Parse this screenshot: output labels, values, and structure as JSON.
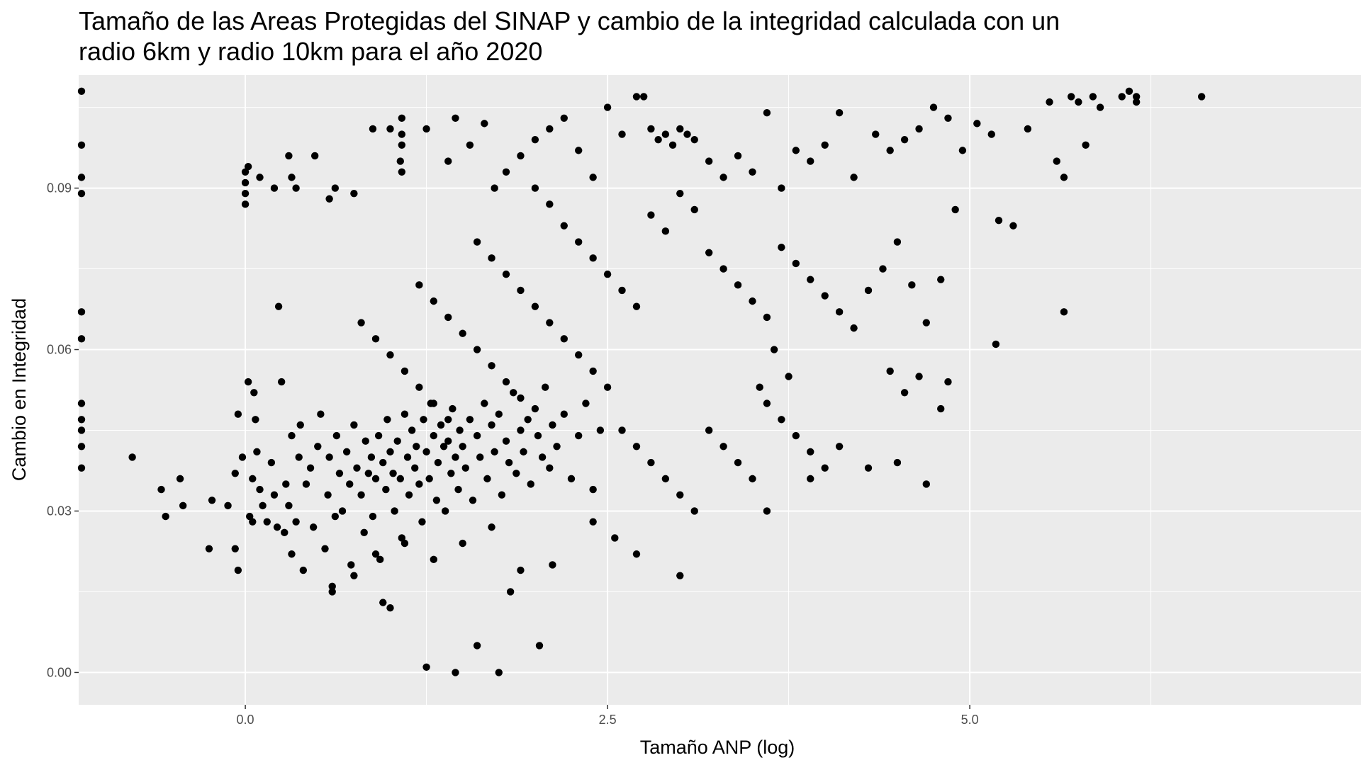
{
  "chart_data": {
    "type": "scatter",
    "title_lines": [
      "Tamaño de las Areas Protegidas del SINAP y cambio de la integridad calculada con un",
      "radio 6km y radio 10km para el año 2020"
    ],
    "xlabel": "Tamaño ANP (log)",
    "ylabel": "Cambio en Integridad",
    "xlim": [
      -1.15,
      7.7
    ],
    "ylim": [
      -0.006,
      0.111
    ],
    "x_ticks": [
      0.0,
      2.5,
      5.0
    ],
    "x_tick_labels": [
      "0.0",
      "2.5",
      "5.0"
    ],
    "y_ticks": [
      0.0,
      0.03,
      0.06,
      0.09
    ],
    "y_tick_labels": [
      "0.00",
      "0.03",
      "0.06",
      "0.09"
    ],
    "grid": true,
    "panel_color": "#ebebeb",
    "grid_color": "#ffffff",
    "point_color": "#000000",
    "points": [
      [
        -1.15,
        0.108
      ],
      [
        -1.15,
        0.098
      ],
      [
        -1.15,
        0.092
      ],
      [
        -1.15,
        0.089
      ],
      [
        -1.15,
        0.067
      ],
      [
        -1.15,
        0.062
      ],
      [
        -1.15,
        0.05
      ],
      [
        -1.15,
        0.047
      ],
      [
        -1.15,
        0.045
      ],
      [
        -1.15,
        0.042
      ],
      [
        -1.15,
        0.038
      ],
      [
        -0.78,
        0.04
      ],
      [
        -0.58,
        0.034
      ],
      [
        -0.55,
        0.029
      ],
      [
        -0.45,
        0.036
      ],
      [
        -0.43,
        0.031
      ],
      [
        -0.25,
        0.023
      ],
      [
        -0.23,
        0.032
      ],
      [
        -0.12,
        0.031
      ],
      [
        -0.07,
        0.037
      ],
      [
        -0.02,
        0.04
      ],
      [
        -0.05,
        0.019
      ],
      [
        -0.07,
        0.023
      ],
      [
        -0.05,
        0.048
      ],
      [
        0.02,
        0.054
      ],
      [
        0.0,
        0.093
      ],
      [
        0.0,
        0.091
      ],
      [
        0.0,
        0.089
      ],
      [
        0.0,
        0.087
      ],
      [
        0.02,
        0.094
      ],
      [
        0.03,
        0.029
      ],
      [
        0.05,
        0.028
      ],
      [
        0.05,
        0.036
      ],
      [
        0.06,
        0.052
      ],
      [
        0.07,
        0.047
      ],
      [
        0.08,
        0.041
      ],
      [
        0.1,
        0.034
      ],
      [
        0.12,
        0.031
      ],
      [
        0.15,
        0.028
      ],
      [
        0.18,
        0.039
      ],
      [
        0.2,
        0.033
      ],
      [
        0.22,
        0.027
      ],
      [
        0.23,
        0.068
      ],
      [
        0.25,
        0.054
      ],
      [
        0.27,
        0.026
      ],
      [
        0.28,
        0.035
      ],
      [
        0.3,
        0.031
      ],
      [
        0.32,
        0.022
      ],
      [
        0.32,
        0.044
      ],
      [
        0.35,
        0.028
      ],
      [
        0.37,
        0.04
      ],
      [
        0.38,
        0.046
      ],
      [
        0.4,
        0.019
      ],
      [
        0.42,
        0.035
      ],
      [
        0.45,
        0.038
      ],
      [
        0.47,
        0.027
      ],
      [
        0.5,
        0.042
      ],
      [
        0.52,
        0.048
      ],
      [
        0.55,
        0.023
      ],
      [
        0.57,
        0.033
      ],
      [
        0.58,
        0.04
      ],
      [
        0.6,
        0.015
      ],
      [
        0.62,
        0.029
      ],
      [
        0.63,
        0.044
      ],
      [
        0.65,
        0.037
      ],
      [
        0.67,
        0.03
      ],
      [
        0.7,
        0.041
      ],
      [
        0.72,
        0.035
      ],
      [
        0.73,
        0.02
      ],
      [
        0.75,
        0.046
      ],
      [
        0.77,
        0.038
      ],
      [
        0.8,
        0.033
      ],
      [
        0.82,
        0.026
      ],
      [
        0.83,
        0.043
      ],
      [
        0.85,
        0.037
      ],
      [
        0.87,
        0.04
      ],
      [
        0.88,
        0.029
      ],
      [
        0.9,
        0.036
      ],
      [
        0.92,
        0.044
      ],
      [
        0.93,
        0.021
      ],
      [
        0.95,
        0.039
      ],
      [
        0.97,
        0.034
      ],
      [
        0.98,
        0.047
      ],
      [
        1.0,
        0.041
      ],
      [
        1.02,
        0.037
      ],
      [
        1.03,
        0.03
      ],
      [
        1.05,
        0.043
      ],
      [
        1.07,
        0.036
      ],
      [
        1.08,
        0.025
      ],
      [
        1.1,
        0.048
      ],
      [
        1.12,
        0.04
      ],
      [
        1.13,
        0.033
      ],
      [
        1.15,
        0.045
      ],
      [
        1.17,
        0.038
      ],
      [
        1.18,
        0.042
      ],
      [
        1.2,
        0.035
      ],
      [
        1.22,
        0.028
      ],
      [
        1.23,
        0.047
      ],
      [
        1.25,
        0.041
      ],
      [
        1.27,
        0.036
      ],
      [
        1.28,
        0.05
      ],
      [
        1.3,
        0.044
      ],
      [
        1.32,
        0.032
      ],
      [
        1.33,
        0.039
      ],
      [
        1.35,
        0.046
      ],
      [
        1.37,
        0.042
      ],
      [
        1.38,
        0.03
      ],
      [
        1.4,
        0.043
      ],
      [
        1.42,
        0.037
      ],
      [
        1.43,
        0.049
      ],
      [
        1.45,
        0.04
      ],
      [
        1.47,
        0.034
      ],
      [
        1.48,
        0.045
      ],
      [
        1.5,
        0.042
      ],
      [
        1.52,
        0.038
      ],
      [
        1.55,
        0.047
      ],
      [
        1.57,
        0.032
      ],
      [
        1.6,
        0.044
      ],
      [
        1.62,
        0.04
      ],
      [
        1.65,
        0.05
      ],
      [
        1.67,
        0.036
      ],
      [
        1.7,
        0.046
      ],
      [
        1.72,
        0.041
      ],
      [
        1.75,
        0.048
      ],
      [
        1.77,
        0.033
      ],
      [
        1.8,
        0.043
      ],
      [
        1.82,
        0.039
      ],
      [
        1.85,
        0.052
      ],
      [
        1.87,
        0.037
      ],
      [
        1.9,
        0.045
      ],
      [
        1.92,
        0.041
      ],
      [
        1.95,
        0.047
      ],
      [
        1.97,
        0.035
      ],
      [
        2.0,
        0.049
      ],
      [
        2.02,
        0.044
      ],
      [
        2.05,
        0.04
      ],
      [
        2.07,
        0.053
      ],
      [
        2.1,
        0.038
      ],
      [
        2.12,
        0.046
      ],
      [
        2.15,
        0.042
      ],
      [
        2.2,
        0.048
      ],
      [
        2.25,
        0.036
      ],
      [
        2.3,
        0.044
      ],
      [
        2.35,
        0.05
      ],
      [
        2.4,
        0.034
      ],
      [
        2.45,
        0.045
      ],
      [
        0.1,
        0.092
      ],
      [
        0.2,
        0.09
      ],
      [
        0.3,
        0.096
      ],
      [
        0.32,
        0.092
      ],
      [
        0.35,
        0.09
      ],
      [
        0.48,
        0.096
      ],
      [
        0.58,
        0.088
      ],
      [
        0.62,
        0.09
      ],
      [
        0.75,
        0.089
      ],
      [
        0.88,
        0.101
      ],
      [
        1.0,
        0.101
      ],
      [
        1.07,
        0.095
      ],
      [
        1.08,
        0.103
      ],
      [
        1.08,
        0.1
      ],
      [
        1.08,
        0.098
      ],
      [
        1.08,
        0.093
      ],
      [
        1.25,
        0.101
      ],
      [
        1.4,
        0.095
      ],
      [
        1.45,
        0.103
      ],
      [
        1.55,
        0.098
      ],
      [
        1.65,
        0.102
      ],
      [
        1.72,
        0.09
      ],
      [
        1.8,
        0.093
      ],
      [
        1.9,
        0.096
      ],
      [
        2.0,
        0.099
      ],
      [
        2.1,
        0.101
      ],
      [
        2.2,
        0.103
      ],
      [
        2.3,
        0.097
      ],
      [
        2.4,
        0.092
      ],
      [
        2.5,
        0.105
      ],
      [
        2.6,
        0.1
      ],
      [
        2.7,
        0.107
      ],
      [
        2.75,
        0.107
      ],
      [
        2.8,
        0.101
      ],
      [
        2.85,
        0.099
      ],
      [
        2.9,
        0.1
      ],
      [
        2.95,
        0.098
      ],
      [
        3.0,
        0.101
      ],
      [
        3.05,
        0.1
      ],
      [
        3.1,
        0.099
      ],
      [
        3.2,
        0.095
      ],
      [
        3.3,
        0.092
      ],
      [
        3.4,
        0.096
      ],
      [
        3.5,
        0.093
      ],
      [
        3.6,
        0.104
      ],
      [
        3.7,
        0.09
      ],
      [
        3.8,
        0.097
      ],
      [
        3.9,
        0.095
      ],
      [
        4.0,
        0.098
      ],
      [
        4.1,
        0.104
      ],
      [
        4.2,
        0.092
      ],
      [
        4.35,
        0.1
      ],
      [
        4.45,
        0.097
      ],
      [
        4.55,
        0.099
      ],
      [
        4.65,
        0.101
      ],
      [
        4.75,
        0.105
      ],
      [
        4.85,
        0.103
      ],
      [
        4.95,
        0.097
      ],
      [
        5.05,
        0.102
      ],
      [
        5.15,
        0.1
      ],
      [
        5.2,
        0.084
      ],
      [
        5.3,
        0.083
      ],
      [
        5.4,
        0.101
      ],
      [
        5.55,
        0.106
      ],
      [
        5.6,
        0.095
      ],
      [
        5.65,
        0.092
      ],
      [
        5.7,
        0.107
      ],
      [
        5.75,
        0.106
      ],
      [
        5.8,
        0.098
      ],
      [
        5.85,
        0.107
      ],
      [
        5.9,
        0.105
      ],
      [
        6.05,
        0.107
      ],
      [
        6.1,
        0.108
      ],
      [
        6.15,
        0.106
      ],
      [
        6.15,
        0.107
      ],
      [
        6.6,
        0.107
      ],
      [
        5.65,
        0.067
      ],
      [
        5.18,
        0.061
      ],
      [
        2.0,
        0.09
      ],
      [
        2.1,
        0.087
      ],
      [
        2.2,
        0.083
      ],
      [
        2.3,
        0.08
      ],
      [
        2.4,
        0.077
      ],
      [
        2.5,
        0.074
      ],
      [
        2.6,
        0.071
      ],
      [
        2.7,
        0.068
      ],
      [
        2.8,
        0.085
      ],
      [
        2.9,
        0.082
      ],
      [
        3.0,
        0.089
      ],
      [
        3.1,
        0.086
      ],
      [
        3.2,
        0.078
      ],
      [
        3.3,
        0.075
      ],
      [
        3.4,
        0.072
      ],
      [
        3.5,
        0.069
      ],
      [
        3.6,
        0.066
      ],
      [
        3.7,
        0.079
      ],
      [
        3.8,
        0.076
      ],
      [
        3.9,
        0.073
      ],
      [
        4.0,
        0.07
      ],
      [
        4.1,
        0.067
      ],
      [
        4.2,
        0.064
      ],
      [
        4.3,
        0.071
      ],
      [
        4.4,
        0.075
      ],
      [
        4.5,
        0.08
      ],
      [
        4.6,
        0.072
      ],
      [
        4.7,
        0.065
      ],
      [
        4.8,
        0.073
      ],
      [
        4.9,
        0.086
      ],
      [
        1.6,
        0.08
      ],
      [
        1.7,
        0.077
      ],
      [
        1.8,
        0.074
      ],
      [
        1.9,
        0.071
      ],
      [
        2.0,
        0.068
      ],
      [
        2.1,
        0.065
      ],
      [
        2.2,
        0.062
      ],
      [
        2.3,
        0.059
      ],
      [
        2.4,
        0.056
      ],
      [
        2.5,
        0.053
      ],
      [
        1.2,
        0.072
      ],
      [
        1.3,
        0.069
      ],
      [
        1.4,
        0.066
      ],
      [
        1.5,
        0.063
      ],
      [
        1.6,
        0.06
      ],
      [
        1.7,
        0.057
      ],
      [
        1.8,
        0.054
      ],
      [
        1.9,
        0.051
      ],
      [
        0.8,
        0.065
      ],
      [
        0.9,
        0.062
      ],
      [
        1.0,
        0.059
      ],
      [
        1.1,
        0.056
      ],
      [
        1.2,
        0.053
      ],
      [
        1.3,
        0.05
      ],
      [
        1.4,
        0.047
      ],
      [
        2.6,
        0.045
      ],
      [
        2.7,
        0.042
      ],
      [
        2.8,
        0.039
      ],
      [
        2.9,
        0.036
      ],
      [
        3.0,
        0.033
      ],
      [
        3.1,
        0.03
      ],
      [
        3.2,
        0.045
      ],
      [
        3.3,
        0.042
      ],
      [
        3.4,
        0.039
      ],
      [
        3.5,
        0.036
      ],
      [
        3.6,
        0.05
      ],
      [
        3.7,
        0.047
      ],
      [
        3.8,
        0.044
      ],
      [
        3.9,
        0.041
      ],
      [
        4.0,
        0.038
      ],
      [
        3.6,
        0.03
      ],
      [
        3.0,
        0.018
      ],
      [
        4.3,
        0.038
      ],
      [
        4.5,
        0.039
      ],
      [
        4.7,
        0.035
      ],
      [
        4.45,
        0.056
      ],
      [
        4.55,
        0.052
      ],
      [
        4.65,
        0.055
      ],
      [
        4.8,
        0.049
      ],
      [
        4.85,
        0.054
      ],
      [
        4.1,
        0.042
      ],
      [
        3.9,
        0.036
      ],
      [
        3.75,
        0.055
      ],
      [
        3.65,
        0.06
      ],
      [
        3.55,
        0.053
      ],
      [
        1.0,
        0.012
      ],
      [
        0.95,
        0.013
      ],
      [
        1.25,
        0.001
      ],
      [
        1.45,
        0.0
      ],
      [
        1.75,
        0.0
      ],
      [
        1.6,
        0.005
      ],
      [
        2.03,
        0.005
      ],
      [
        2.12,
        0.02
      ],
      [
        2.4,
        0.028
      ],
      [
        2.55,
        0.025
      ],
      [
        2.7,
        0.022
      ],
      [
        1.83,
        0.015
      ],
      [
        1.9,
        0.019
      ],
      [
        0.6,
        0.016
      ],
      [
        0.75,
        0.018
      ],
      [
        0.9,
        0.022
      ],
      [
        1.1,
        0.024
      ],
      [
        1.3,
        0.021
      ],
      [
        1.5,
        0.024
      ],
      [
        1.7,
        0.027
      ]
    ]
  }
}
